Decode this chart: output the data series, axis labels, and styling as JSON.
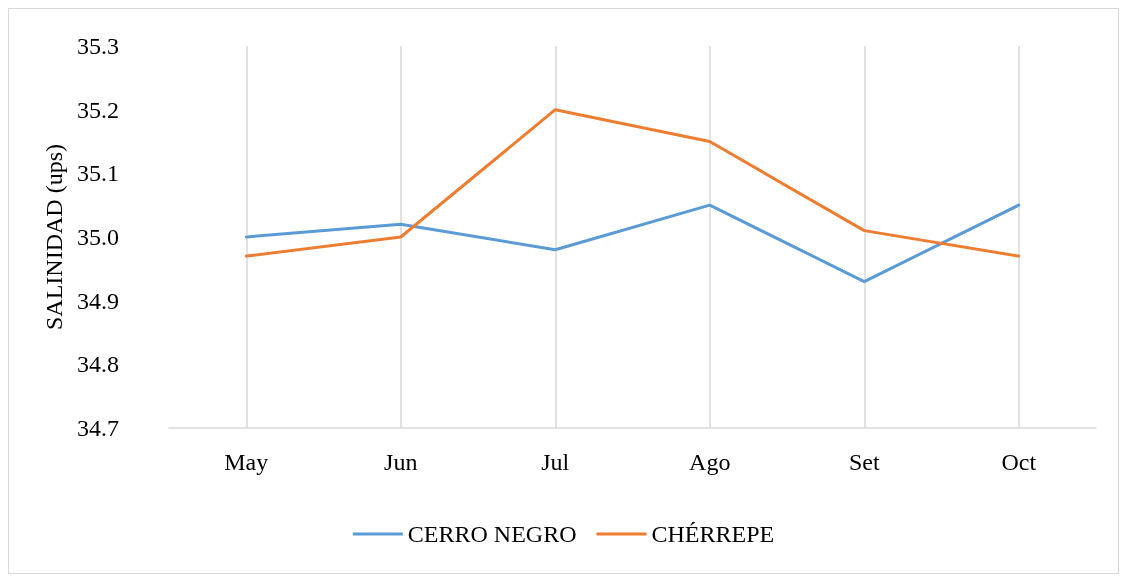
{
  "chart_data": {
    "type": "line",
    "ylabel": "SALINIDAD (ups)",
    "categories": [
      "May",
      "Jun",
      "Jul",
      "Ago",
      "Set",
      "Oct"
    ],
    "series": [
      {
        "name": "CERRO NEGRO",
        "color": "#5b9bd5",
        "values": [
          35.0,
          35.02,
          34.98,
          35.05,
          34.93,
          35.05
        ]
      },
      {
        "name": "CHÉRREPE",
        "color": "#ed7d31",
        "values": [
          34.97,
          35.0,
          35.2,
          35.15,
          35.01,
          34.97
        ]
      }
    ],
    "ylim": [
      34.7,
      35.3
    ],
    "yticks": [
      34.7,
      34.8,
      34.9,
      {
        "value": 35,
        "label": "35.0"
      },
      35.1,
      35.2,
      35.3
    ],
    "grid": "x",
    "legend": "bottom",
    "marker": "none",
    "line_style": "solid"
  }
}
